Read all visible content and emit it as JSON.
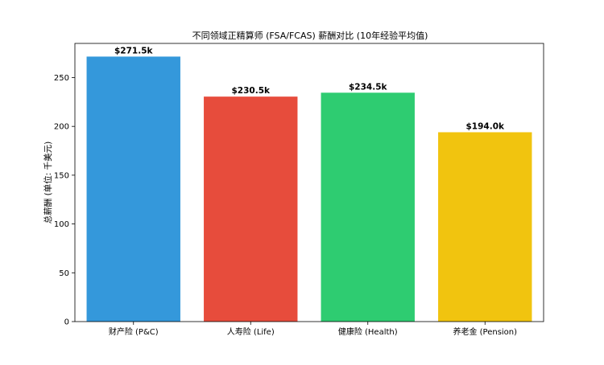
{
  "chart_data": {
    "type": "bar",
    "title": "不同领域正精算师 (FSA/FCAS) 薪酬对比 (10年经验平均值)",
    "xlabel": "",
    "ylabel": "总薪酬 (单位: 千美元)",
    "categories": [
      "财产险 (P&C)",
      "人寿险 (Life)",
      "健康险 (Health)",
      "养老金 (Pension)"
    ],
    "values": [
      271.5,
      230.5,
      234.5,
      194.0
    ],
    "data_labels": [
      "$271.5k",
      "$230.5k",
      "$234.5k",
      "$194.0k"
    ],
    "colors": [
      "#3498db",
      "#e74c3c",
      "#2ecc71",
      "#f1c40f"
    ],
    "ylim": [
      0,
      285
    ],
    "yticks": [
      0,
      50,
      100,
      150,
      200,
      250
    ],
    "grid": false,
    "legend": "none"
  }
}
